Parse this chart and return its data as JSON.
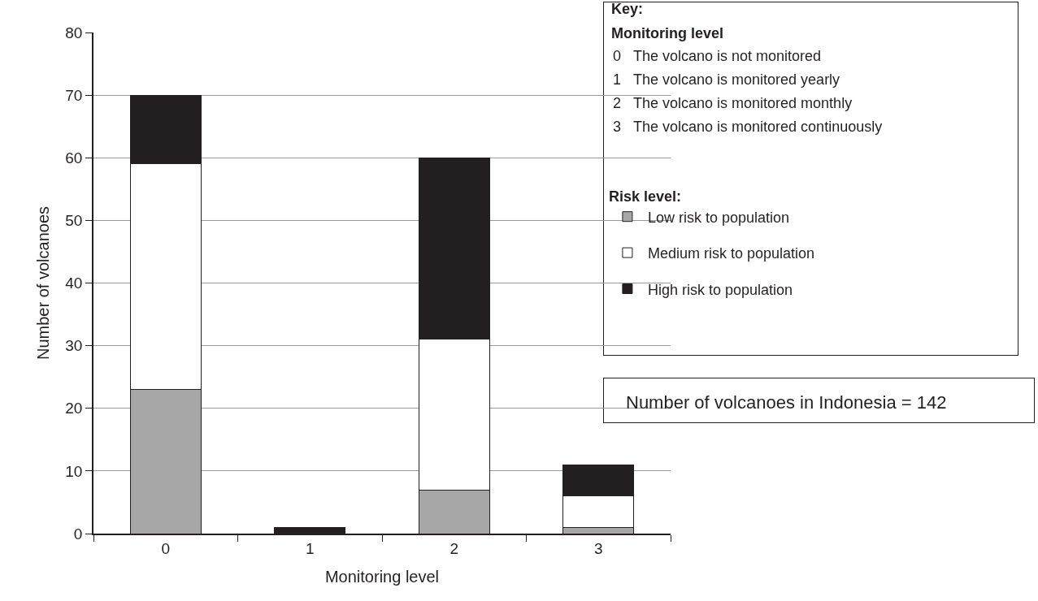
{
  "chart_data": {
    "type": "bar",
    "stacked": true,
    "xlabel": "Monitoring level",
    "ylabel": "Number of volcanoes",
    "legend_title": "Risk level:",
    "categories": [
      "0",
      "1",
      "2",
      "3"
    ],
    "series": [
      {
        "name": "Low risk to population",
        "color": "#a7a7a8",
        "values": [
          23,
          0,
          7,
          1
        ]
      },
      {
        "name": "Medium risk to population",
        "color": "#ffffff",
        "values": [
          36,
          0,
          24,
          5
        ]
      },
      {
        "name": "High risk to population",
        "color": "#231f20",
        "values": [
          11,
          1,
          29,
          5
        ]
      }
    ],
    "ylim": [
      0,
      80
    ],
    "yticks": [
      0,
      10,
      20,
      30,
      40,
      50,
      60,
      70,
      80
    ],
    "grid": "y",
    "legend": "top right",
    "annotations": [
      "Key:",
      "Monitoring level",
      "0 The volcano is not monitored",
      "1 The volcano is monitored yearly",
      "2 The volcano is monitored monthly",
      "3 The volcano is monitored continuously",
      "Number of volcanoes in Indonesia = 142"
    ]
  }
}
